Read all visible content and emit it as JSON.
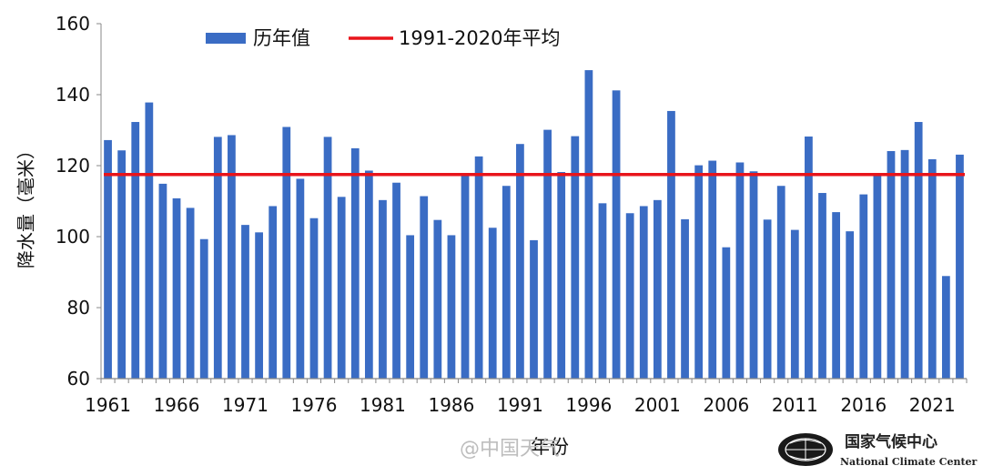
{
  "chart_data": {
    "type": "bar",
    "ylabel": "降水量（毫米）",
    "xlabel": "年份",
    "ylim": [
      60,
      160
    ],
    "yticks": [
      60,
      80,
      100,
      120,
      140,
      160
    ],
    "x_tick_labels": [
      "1961",
      "1966",
      "1971",
      "1976",
      "1981",
      "1986",
      "1991",
      "1996",
      "2001",
      "2006",
      "2011",
      "2016",
      "2021"
    ],
    "categories": [
      1961,
      1962,
      1963,
      1964,
      1965,
      1966,
      1967,
      1968,
      1969,
      1970,
      1971,
      1972,
      1973,
      1974,
      1975,
      1976,
      1977,
      1978,
      1979,
      1980,
      1981,
      1982,
      1983,
      1984,
      1985,
      1986,
      1987,
      1988,
      1989,
      1990,
      1991,
      1992,
      1993,
      1994,
      1995,
      1996,
      1997,
      1998,
      1999,
      2000,
      2001,
      2002,
      2003,
      2004,
      2005,
      2006,
      2007,
      2008,
      2009,
      2010,
      2011,
      2012,
      2013,
      2014,
      2015,
      2016,
      2017,
      2018,
      2019,
      2020,
      2021,
      2022,
      2023
    ],
    "series": [
      {
        "name": "历年值",
        "color": "#3a6cc4",
        "values": [
          127.2,
          124.3,
          132.3,
          137.8,
          114.9,
          110.8,
          108.1,
          99.3,
          128.1,
          128.6,
          103.3,
          101.2,
          108.6,
          130.9,
          116.3,
          105.2,
          128.1,
          111.2,
          124.9,
          118.6,
          110.3,
          115.2,
          100.4,
          111.4,
          104.7,
          100.4,
          117.4,
          122.6,
          102.5,
          114.3,
          126.1,
          99.0,
          130.1,
          118.2,
          128.3,
          146.9,
          109.4,
          141.2,
          106.6,
          108.6,
          110.3,
          135.4,
          104.9,
          120.1,
          121.4,
          97.0,
          120.9,
          118.4,
          104.8,
          114.3,
          101.9,
          128.2,
          112.3,
          106.9,
          101.5,
          111.9,
          117.6,
          124.1,
          124.4,
          132.3,
          121.8,
          88.9,
          123.1
        ]
      }
    ],
    "reference_line": {
      "name": "1991-2020年平均",
      "color": "#e8141b",
      "value": 117.5
    },
    "grid": false,
    "legend_position": "top"
  },
  "watermark": {
    "text": "@中国天气"
  },
  "logo": {
    "name_zh": "国家气候中心",
    "name_en": "National Climate Center"
  }
}
